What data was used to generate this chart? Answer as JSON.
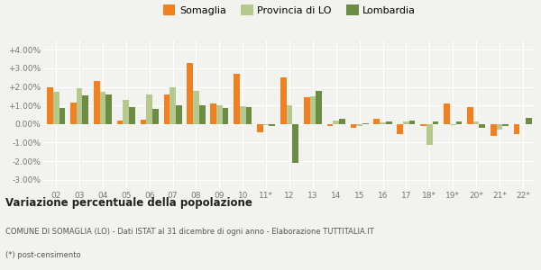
{
  "years": [
    "02",
    "03",
    "04",
    "05",
    "06",
    "07",
    "08",
    "09",
    "10",
    "11*",
    "12",
    "13",
    "14",
    "15",
    "16",
    "17",
    "18*",
    "19*",
    "20*",
    "21*",
    "22*"
  ],
  "somaglia": [
    2.0,
    1.15,
    2.3,
    0.2,
    0.25,
    1.6,
    3.3,
    1.1,
    2.7,
    -0.45,
    2.5,
    1.45,
    -0.1,
    -0.2,
    0.3,
    -0.55,
    -0.1,
    1.1,
    0.9,
    -0.65,
    -0.55
  ],
  "provincia_lo": [
    1.75,
    1.95,
    1.75,
    1.3,
    1.6,
    2.0,
    1.8,
    1.0,
    0.95,
    -0.05,
    1.0,
    1.5,
    0.2,
    -0.1,
    0.1,
    0.15,
    -1.1,
    -0.05,
    0.15,
    -0.3,
    0.0
  ],
  "lombardia": [
    0.85,
    1.55,
    1.6,
    0.9,
    0.8,
    1.0,
    1.0,
    0.85,
    0.9,
    -0.1,
    -2.1,
    1.8,
    0.3,
    0.05,
    0.15,
    0.2,
    0.15,
    0.15,
    -0.2,
    -0.1,
    0.35
  ],
  "color_somaglia": "#f28020",
  "color_provincia": "#b5c98e",
  "color_lombardia": "#6b8c42",
  "background_color": "#f2f2ee",
  "grid_color": "#ffffff",
  "title": "Variazione percentuale della popolazione",
  "subtitle": "COMUNE DI SOMAGLIA (LO) - Dati ISTAT al 31 dicembre di ogni anno - Elaborazione TUTTITALIA.IT",
  "footnote": "(*) post-censimento",
  "ylim": [
    -3.5,
    4.5
  ],
  "yticks": [
    -3.0,
    -2.0,
    -1.0,
    0.0,
    1.0,
    2.0,
    3.0,
    4.0
  ],
  "ytick_labels": [
    "-3.00%",
    "-2.00%",
    "-1.00%",
    "0.00%",
    "+1.00%",
    "+2.00%",
    "+3.00%",
    "+4.00%"
  ]
}
